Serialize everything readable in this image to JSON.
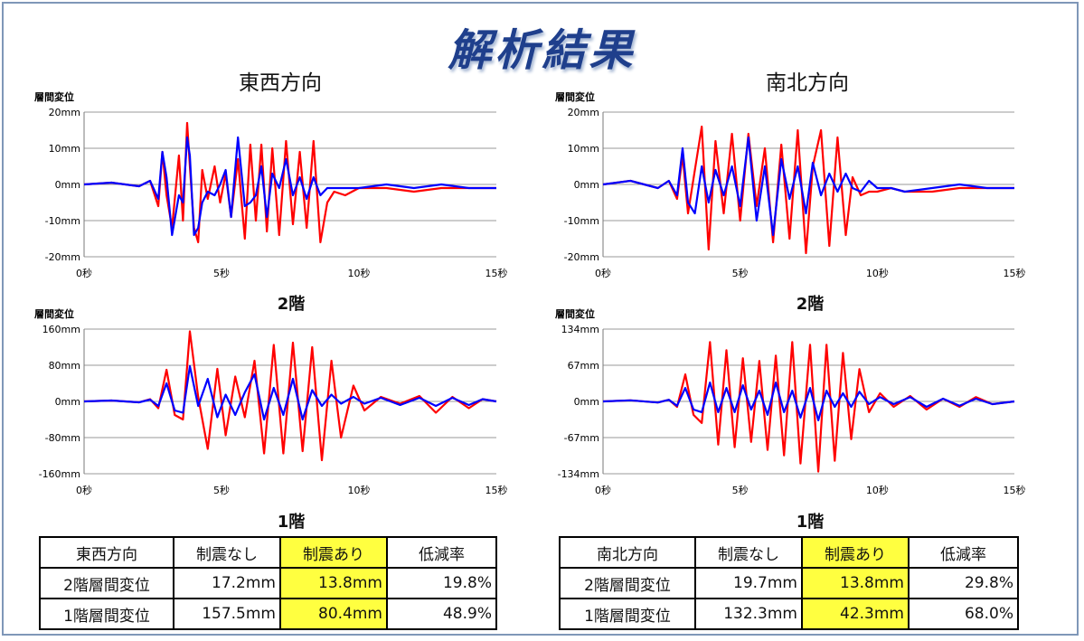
{
  "title": "解析結果",
  "panels": [
    {
      "direction": "東西方向"
    },
    {
      "direction": "南北方向"
    }
  ],
  "floor_labels": {
    "second": "2階",
    "first": "1階"
  },
  "series_colors": {
    "no_damper": "#ff0000",
    "with_damper": "#0000ff"
  },
  "chart_data": [
    {
      "type": "line",
      "panel": "east-west",
      "floor": "2階",
      "ylabel": "層間変位",
      "xlim": [
        0,
        15
      ],
      "ylim": [
        -20,
        20
      ],
      "x_ticks": [
        "0秒",
        "5秒",
        "10秒",
        "15秒"
      ],
      "y_ticks": [
        "20mm",
        "10mm",
        "0mm",
        "-10mm",
        "-20mm"
      ],
      "series": [
        {
          "color": "#ff0000",
          "x": [
            0,
            1,
            2,
            2.4,
            2.7,
            2.85,
            3.0,
            3.2,
            3.45,
            3.6,
            3.75,
            3.85,
            4.0,
            4.15,
            4.3,
            4.5,
            4.75,
            4.95,
            5.15,
            5.35,
            5.6,
            5.85,
            6.05,
            6.25,
            6.45,
            6.65,
            6.85,
            7.1,
            7.35,
            7.6,
            7.85,
            8.1,
            8.35,
            8.6,
            8.85,
            9.1,
            9.5,
            10,
            11,
            12,
            13,
            14,
            15
          ],
          "y": [
            0,
            0.5,
            -0.5,
            1,
            -6,
            9,
            -3,
            -12,
            8,
            -10,
            17,
            5,
            -12,
            -16,
            4,
            -4,
            5,
            -5,
            3,
            -9,
            7,
            -15,
            11,
            -10,
            11,
            -13,
            10,
            -14,
            12,
            -11,
            9,
            -12,
            12,
            -16,
            -5,
            -2,
            -3,
            -1,
            -1,
            -2,
            -1,
            -1,
            -1
          ]
        },
        {
          "color": "#0000ff",
          "x": [
            0,
            1,
            2,
            2.4,
            2.7,
            2.85,
            3.0,
            3.2,
            3.45,
            3.6,
            3.75,
            3.85,
            4.0,
            4.15,
            4.3,
            4.5,
            4.75,
            4.95,
            5.15,
            5.35,
            5.6,
            5.85,
            6.05,
            6.25,
            6.45,
            6.65,
            6.85,
            7.1,
            7.35,
            7.6,
            7.85,
            8.1,
            8.35,
            8.6,
            8.85,
            9.1,
            9.5,
            10,
            11,
            12,
            13,
            14,
            15
          ],
          "y": [
            0,
            0.5,
            -0.5,
            1,
            -4,
            9,
            2,
            -14,
            -3,
            -5,
            13,
            8,
            -14,
            -12,
            -5,
            -2,
            -3,
            0,
            4,
            -9,
            13,
            -6,
            -5,
            -3,
            5,
            -9,
            3,
            -1,
            7,
            -3,
            2,
            -4,
            2,
            -3,
            -1,
            -1,
            -1,
            -1,
            0,
            -1,
            0,
            -1,
            -1
          ]
        }
      ]
    },
    {
      "type": "line",
      "panel": "east-west",
      "floor": "1階",
      "ylabel": "層間変位",
      "xlim": [
        0,
        15
      ],
      "ylim": [
        -160,
        160
      ],
      "x_ticks": [
        "0秒",
        "5秒",
        "10秒",
        "15秒"
      ],
      "y_ticks": [
        "160mm",
        "80mm",
        "0mm",
        "-80mm",
        "-160mm"
      ],
      "series": [
        {
          "color": "#ff0000",
          "x": [
            0,
            1,
            2,
            2.4,
            2.7,
            3.0,
            3.3,
            3.6,
            3.85,
            4.15,
            4.5,
            4.85,
            5.15,
            5.5,
            5.85,
            6.2,
            6.55,
            6.9,
            7.25,
            7.6,
            7.95,
            8.3,
            8.65,
            9.0,
            9.35,
            9.8,
            10.2,
            10.8,
            11.5,
            12.2,
            12.8,
            13.4,
            14,
            14.5,
            15
          ],
          "y": [
            0,
            2,
            -2,
            5,
            -15,
            70,
            -30,
            -40,
            155,
            10,
            -105,
            72,
            -75,
            55,
            -35,
            90,
            -115,
            125,
            -115,
            130,
            -110,
            120,
            -130,
            90,
            -80,
            35,
            -20,
            10,
            -5,
            12,
            -25,
            10,
            -15,
            5,
            0
          ]
        },
        {
          "color": "#0000ff",
          "x": [
            0,
            1,
            2,
            2.4,
            2.7,
            3.0,
            3.3,
            3.6,
            3.85,
            4.15,
            4.5,
            4.85,
            5.15,
            5.5,
            5.85,
            6.2,
            6.55,
            6.9,
            7.25,
            7.6,
            7.95,
            8.3,
            8.65,
            9.0,
            9.35,
            9.8,
            10.2,
            10.8,
            11.5,
            12.2,
            12.8,
            13.4,
            14,
            14.5,
            15
          ],
          "y": [
            0,
            2,
            -2,
            4,
            -10,
            40,
            -20,
            -25,
            78,
            -10,
            50,
            -35,
            15,
            -30,
            20,
            60,
            -40,
            30,
            -30,
            50,
            -40,
            25,
            -10,
            15,
            -5,
            10,
            -5,
            8,
            -8,
            8,
            -10,
            8,
            -8,
            5,
            0
          ]
        }
      ]
    },
    {
      "type": "line",
      "panel": "north-south",
      "floor": "2階",
      "ylabel": "層間変位",
      "xlim": [
        0,
        15
      ],
      "ylim": [
        -20,
        20
      ],
      "x_ticks": [
        "0秒",
        "5秒",
        "10秒",
        "15秒"
      ],
      "y_ticks": [
        "20mm",
        "10mm",
        "0mm",
        "-10mm",
        "-20mm"
      ],
      "series": [
        {
          "color": "#ff0000",
          "x": [
            0,
            1,
            2,
            2.4,
            2.7,
            2.9,
            3.1,
            3.35,
            3.6,
            3.85,
            4.1,
            4.4,
            4.7,
            5.0,
            5.3,
            5.6,
            5.9,
            6.2,
            6.5,
            6.8,
            7.1,
            7.4,
            7.65,
            7.95,
            8.25,
            8.55,
            8.85,
            9.1,
            9.4,
            9.7,
            10,
            10.5,
            11,
            12,
            13,
            14,
            15
          ],
          "y": [
            0,
            1,
            -1,
            1,
            -4,
            8,
            -8,
            4,
            16,
            -18,
            12,
            -8,
            14,
            -10,
            14,
            -6,
            10,
            -16,
            11,
            -15,
            15,
            -19,
            5,
            15,
            -17,
            13,
            -14,
            2,
            -3,
            -2,
            -2,
            -1,
            -2,
            -2,
            -1,
            -1,
            -1
          ]
        },
        {
          "color": "#0000ff",
          "x": [
            0,
            1,
            2,
            2.4,
            2.7,
            2.9,
            3.1,
            3.35,
            3.6,
            3.85,
            4.1,
            4.4,
            4.7,
            5.0,
            5.3,
            5.6,
            5.9,
            6.2,
            6.5,
            6.8,
            7.1,
            7.4,
            7.65,
            7.95,
            8.25,
            8.55,
            8.85,
            9.1,
            9.4,
            9.7,
            10,
            10.5,
            11,
            12,
            13,
            14,
            15
          ],
          "y": [
            0,
            1,
            -1,
            1,
            -3,
            10,
            -5,
            -8,
            5,
            -5,
            4,
            -3,
            5,
            -6,
            13,
            -10,
            5,
            -14,
            7,
            -4,
            5,
            -8,
            6,
            -3,
            3,
            -2,
            3,
            -1,
            -2,
            1,
            -1,
            -1,
            -2,
            -1,
            0,
            -1,
            -1
          ]
        }
      ]
    },
    {
      "type": "line",
      "panel": "north-south",
      "floor": "1階",
      "ylabel": "層間変位",
      "xlim": [
        0,
        15
      ],
      "ylim": [
        -134,
        134
      ],
      "x_ticks": [
        "0秒",
        "5秒",
        "10秒",
        "15秒"
      ],
      "y_ticks": [
        "134mm",
        "67mm",
        "0mm",
        "-67mm",
        "-134mm"
      ],
      "series": [
        {
          "color": "#ff0000",
          "x": [
            0,
            1,
            2,
            2.4,
            2.7,
            3.0,
            3.3,
            3.6,
            3.9,
            4.2,
            4.5,
            4.8,
            5.1,
            5.4,
            5.7,
            6.0,
            6.3,
            6.6,
            6.9,
            7.2,
            7.55,
            7.85,
            8.15,
            8.45,
            8.75,
            9.05,
            9.35,
            9.7,
            10.1,
            10.6,
            11.2,
            11.8,
            12.4,
            13,
            13.6,
            14.2,
            15
          ],
          "y": [
            0,
            2,
            -2,
            3,
            -10,
            50,
            -25,
            -40,
            110,
            -80,
            95,
            -85,
            80,
            -75,
            75,
            -90,
            85,
            -100,
            110,
            -115,
            105,
            -130,
            105,
            -110,
            90,
            -70,
            60,
            -20,
            15,
            -10,
            10,
            -15,
            5,
            -10,
            8,
            -5,
            0
          ]
        },
        {
          "color": "#0000ff",
          "x": [
            0,
            1,
            2,
            2.4,
            2.7,
            3.0,
            3.3,
            3.6,
            3.9,
            4.2,
            4.5,
            4.8,
            5.1,
            5.4,
            5.7,
            6.0,
            6.3,
            6.6,
            6.9,
            7.2,
            7.55,
            7.85,
            8.15,
            8.45,
            8.75,
            9.05,
            9.35,
            9.7,
            10.1,
            10.6,
            11.2,
            11.8,
            12.4,
            13,
            13.6,
            14.2,
            15
          ],
          "y": [
            0,
            2,
            -2,
            3,
            -8,
            25,
            -15,
            -20,
            35,
            -20,
            25,
            -20,
            30,
            -15,
            20,
            -25,
            35,
            -20,
            20,
            -30,
            25,
            -35,
            20,
            -10,
            15,
            -10,
            18,
            -5,
            8,
            -5,
            8,
            -10,
            5,
            -8,
            5,
            -5,
            0
          ]
        }
      ]
    }
  ],
  "tables": [
    {
      "header": [
        "東西方向",
        "制震なし",
        "制震あり",
        "低減率"
      ],
      "rows": [
        [
          "2階層間変位",
          "17.2mm",
          "13.8mm",
          "19.8%"
        ],
        [
          "1階層間変位",
          "157.5mm",
          "80.4mm",
          "48.9%"
        ]
      ]
    },
    {
      "header": [
        "南北方向",
        "制震なし",
        "制震あり",
        "低減率"
      ],
      "rows": [
        [
          "2階層間変位",
          "19.7mm",
          "13.8mm",
          "29.8%"
        ],
        [
          "1階層間変位",
          "132.3mm",
          "42.3mm",
          "68.0%"
        ]
      ]
    }
  ]
}
